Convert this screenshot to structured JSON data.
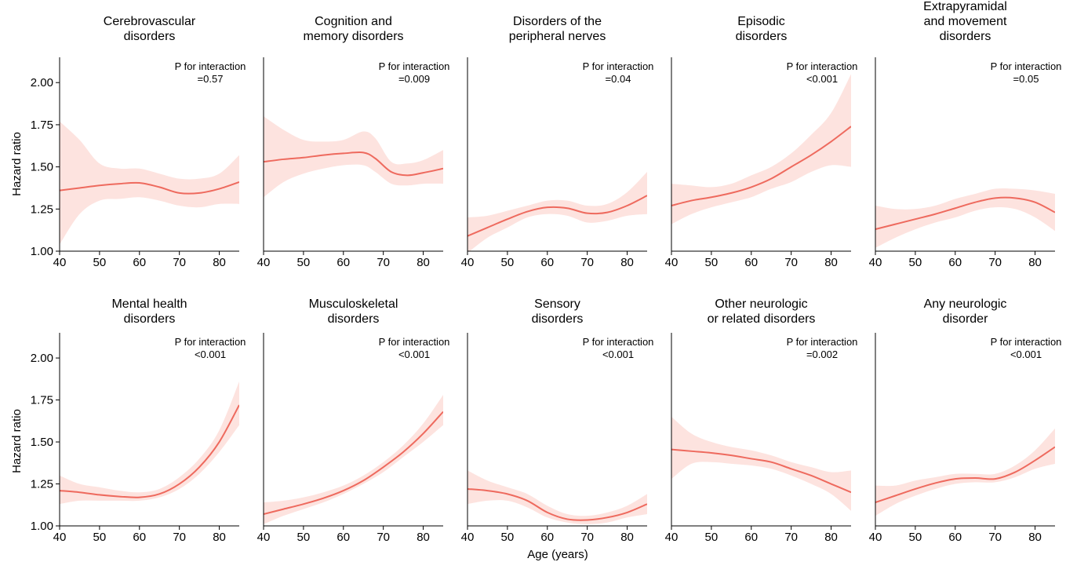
{
  "figure": {
    "xlabel": "Age (years)",
    "ylabel": "Hazard ratio",
    "colors": {
      "line": "#ee6a5e",
      "band": "#fde3df"
    }
  },
  "chart_data": [
    {
      "type": "line",
      "title": [
        "Cerebrovascular",
        "disorders"
      ],
      "annotation": [
        "P for interaction",
        "=0.57"
      ],
      "xlim": [
        40,
        85
      ],
      "ylim": [
        1.0,
        2.15
      ],
      "xticks": [
        40,
        50,
        60,
        70,
        80
      ],
      "yticks": [
        1.0,
        1.25,
        1.5,
        1.75,
        2.0
      ],
      "x": [
        40,
        45,
        50,
        55,
        60,
        65,
        70,
        75,
        80,
        85
      ],
      "y": [
        1.36,
        1.375,
        1.39,
        1.4,
        1.405,
        1.38,
        1.345,
        1.345,
        1.37,
        1.41
      ],
      "lower": [
        1.04,
        1.22,
        1.3,
        1.31,
        1.32,
        1.3,
        1.27,
        1.26,
        1.28,
        1.28
      ],
      "upper": [
        1.77,
        1.66,
        1.52,
        1.49,
        1.49,
        1.46,
        1.43,
        1.43,
        1.46,
        1.57
      ]
    },
    {
      "type": "line",
      "title": [
        "Cognition and",
        "memory disorders"
      ],
      "annotation": [
        "P for interaction",
        "=0.009"
      ],
      "xlim": [
        40,
        85
      ],
      "ylim": [
        1.0,
        2.15
      ],
      "xticks": [
        40,
        50,
        60,
        70,
        80
      ],
      "yticks": [
        1.0,
        1.25,
        1.5,
        1.75,
        2.0
      ],
      "x": [
        40,
        45,
        50,
        55,
        60,
        65,
        68,
        72,
        76,
        80,
        85
      ],
      "y": [
        1.53,
        1.545,
        1.555,
        1.57,
        1.58,
        1.585,
        1.55,
        1.47,
        1.45,
        1.465,
        1.49
      ],
      "lower": [
        1.32,
        1.41,
        1.46,
        1.49,
        1.51,
        1.51,
        1.47,
        1.4,
        1.39,
        1.4,
        1.4
      ],
      "upper": [
        1.8,
        1.72,
        1.66,
        1.65,
        1.66,
        1.71,
        1.67,
        1.53,
        1.52,
        1.54,
        1.6
      ]
    },
    {
      "type": "line",
      "title": [
        "Disorders of the",
        "peripheral nerves"
      ],
      "annotation": [
        "P for interaction",
        "=0.04"
      ],
      "xlim": [
        40,
        85
      ],
      "ylim": [
        1.0,
        2.15
      ],
      "xticks": [
        40,
        50,
        60,
        70,
        80
      ],
      "yticks": [
        1.0,
        1.25,
        1.5,
        1.75,
        2.0
      ],
      "x": [
        40,
        45,
        50,
        55,
        60,
        65,
        70,
        75,
        80,
        85
      ],
      "y": [
        1.09,
        1.14,
        1.19,
        1.235,
        1.26,
        1.255,
        1.225,
        1.23,
        1.27,
        1.33
      ],
      "lower": [
        0.99,
        1.08,
        1.14,
        1.2,
        1.22,
        1.21,
        1.17,
        1.18,
        1.21,
        1.22
      ],
      "upper": [
        1.2,
        1.21,
        1.24,
        1.27,
        1.3,
        1.3,
        1.27,
        1.28,
        1.35,
        1.47
      ]
    },
    {
      "type": "line",
      "title": [
        "Episodic",
        "disorders"
      ],
      "annotation": [
        "P for interaction",
        "<0.001"
      ],
      "xlim": [
        40,
        85
      ],
      "ylim": [
        1.0,
        2.15
      ],
      "xticks": [
        40,
        50,
        60,
        70,
        80
      ],
      "yticks": [
        1.0,
        1.25,
        1.5,
        1.75,
        2.0
      ],
      "x": [
        40,
        45,
        50,
        55,
        60,
        65,
        70,
        75,
        80,
        85
      ],
      "y": [
        1.27,
        1.3,
        1.32,
        1.345,
        1.38,
        1.43,
        1.5,
        1.57,
        1.65,
        1.74
      ],
      "lower": [
        1.16,
        1.22,
        1.26,
        1.29,
        1.32,
        1.37,
        1.41,
        1.47,
        1.51,
        1.5
      ],
      "upper": [
        1.4,
        1.39,
        1.38,
        1.4,
        1.45,
        1.5,
        1.58,
        1.69,
        1.82,
        2.05
      ]
    },
    {
      "type": "line",
      "title": [
        "Extrapyramidal",
        "and movement",
        "disorders"
      ],
      "annotation": [
        "P for interaction",
        "=0.05"
      ],
      "xlim": [
        40,
        85
      ],
      "ylim": [
        1.0,
        2.15
      ],
      "xticks": [
        40,
        50,
        60,
        70,
        80
      ],
      "yticks": [
        1.0,
        1.25,
        1.5,
        1.75,
        2.0
      ],
      "x": [
        40,
        45,
        50,
        55,
        60,
        65,
        70,
        75,
        80,
        85
      ],
      "y": [
        1.13,
        1.16,
        1.19,
        1.22,
        1.255,
        1.29,
        1.315,
        1.315,
        1.29,
        1.23
      ],
      "lower": [
        1.02,
        1.08,
        1.13,
        1.17,
        1.2,
        1.24,
        1.26,
        1.25,
        1.2,
        1.12
      ],
      "upper": [
        1.27,
        1.25,
        1.25,
        1.27,
        1.31,
        1.34,
        1.37,
        1.37,
        1.36,
        1.34
      ]
    },
    {
      "type": "line",
      "title": [
        "Mental health",
        "disorders"
      ],
      "annotation": [
        "P for interaction",
        "<0.001"
      ],
      "xlim": [
        40,
        85
      ],
      "ylim": [
        1.0,
        2.15
      ],
      "xticks": [
        40,
        50,
        60,
        70,
        80
      ],
      "yticks": [
        1.0,
        1.25,
        1.5,
        1.75,
        2.0
      ],
      "x": [
        40,
        45,
        50,
        55,
        60,
        65,
        70,
        75,
        80,
        85
      ],
      "y": [
        1.21,
        1.2,
        1.185,
        1.175,
        1.17,
        1.19,
        1.25,
        1.35,
        1.5,
        1.72
      ],
      "lower": [
        1.13,
        1.15,
        1.15,
        1.15,
        1.15,
        1.17,
        1.22,
        1.31,
        1.44,
        1.6
      ],
      "upper": [
        1.3,
        1.25,
        1.23,
        1.21,
        1.2,
        1.22,
        1.29,
        1.4,
        1.57,
        1.86
      ]
    },
    {
      "type": "line",
      "title": [
        "Musculoskeletal",
        "disorders"
      ],
      "annotation": [
        "P for interaction",
        "<0.001"
      ],
      "xlim": [
        40,
        85
      ],
      "ylim": [
        1.0,
        2.15
      ],
      "xticks": [
        40,
        50,
        60,
        70,
        80
      ],
      "yticks": [
        1.0,
        1.25,
        1.5,
        1.75,
        2.0
      ],
      "x": [
        40,
        45,
        50,
        55,
        60,
        65,
        70,
        75,
        80,
        85
      ],
      "y": [
        1.07,
        1.1,
        1.13,
        1.165,
        1.21,
        1.27,
        1.35,
        1.44,
        1.55,
        1.68
      ],
      "lower": [
        1.01,
        1.06,
        1.1,
        1.14,
        1.19,
        1.25,
        1.32,
        1.41,
        1.5,
        1.6
      ],
      "upper": [
        1.14,
        1.15,
        1.17,
        1.2,
        1.24,
        1.3,
        1.38,
        1.48,
        1.61,
        1.78
      ]
    },
    {
      "type": "line",
      "title": [
        "Sensory",
        "disorders"
      ],
      "annotation": [
        "P for interaction",
        "<0.001"
      ],
      "xlim": [
        40,
        85
      ],
      "ylim": [
        1.0,
        2.15
      ],
      "xticks": [
        40,
        50,
        60,
        70,
        80
      ],
      "yticks": [
        1.0,
        1.25,
        1.5,
        1.75,
        2.0
      ],
      "x": [
        40,
        45,
        50,
        55,
        60,
        65,
        70,
        75,
        80,
        85
      ],
      "y": [
        1.22,
        1.21,
        1.19,
        1.15,
        1.08,
        1.04,
        1.035,
        1.05,
        1.08,
        1.13
      ],
      "lower": [
        1.13,
        1.15,
        1.15,
        1.11,
        1.05,
        1.02,
        1.01,
        1.02,
        1.05,
        1.07
      ],
      "upper": [
        1.33,
        1.27,
        1.23,
        1.19,
        1.12,
        1.07,
        1.06,
        1.08,
        1.12,
        1.19
      ]
    },
    {
      "type": "line",
      "title": [
        "Other neurologic",
        "or related disorders"
      ],
      "annotation": [
        "P for interaction",
        "=0.002"
      ],
      "xlim": [
        40,
        85
      ],
      "ylim": [
        1.0,
        2.15
      ],
      "xticks": [
        40,
        50,
        60,
        70,
        80
      ],
      "yticks": [
        1.0,
        1.25,
        1.5,
        1.75,
        2.0
      ],
      "x": [
        40,
        45,
        50,
        55,
        60,
        65,
        70,
        75,
        80,
        85
      ],
      "y": [
        1.455,
        1.445,
        1.435,
        1.42,
        1.4,
        1.38,
        1.34,
        1.3,
        1.25,
        1.2
      ],
      "lower": [
        1.28,
        1.37,
        1.38,
        1.37,
        1.36,
        1.34,
        1.3,
        1.25,
        1.19,
        1.09
      ],
      "upper": [
        1.65,
        1.55,
        1.5,
        1.47,
        1.45,
        1.42,
        1.38,
        1.35,
        1.32,
        1.33
      ]
    },
    {
      "type": "line",
      "title": [
        "Any neurologic",
        "disorder"
      ],
      "annotation": [
        "P for interaction",
        "<0.001"
      ],
      "xlim": [
        40,
        85
      ],
      "ylim": [
        1.0,
        2.15
      ],
      "xticks": [
        40,
        50,
        60,
        70,
        80
      ],
      "yticks": [
        1.0,
        1.25,
        1.5,
        1.75,
        2.0
      ],
      "x": [
        40,
        45,
        50,
        55,
        60,
        65,
        70,
        75,
        80,
        85
      ],
      "y": [
        1.14,
        1.18,
        1.22,
        1.255,
        1.28,
        1.285,
        1.28,
        1.32,
        1.39,
        1.47
      ],
      "lower": [
        1.06,
        1.13,
        1.18,
        1.22,
        1.25,
        1.26,
        1.26,
        1.29,
        1.34,
        1.37
      ],
      "upper": [
        1.24,
        1.24,
        1.27,
        1.29,
        1.31,
        1.31,
        1.31,
        1.36,
        1.45,
        1.58
      ]
    }
  ]
}
